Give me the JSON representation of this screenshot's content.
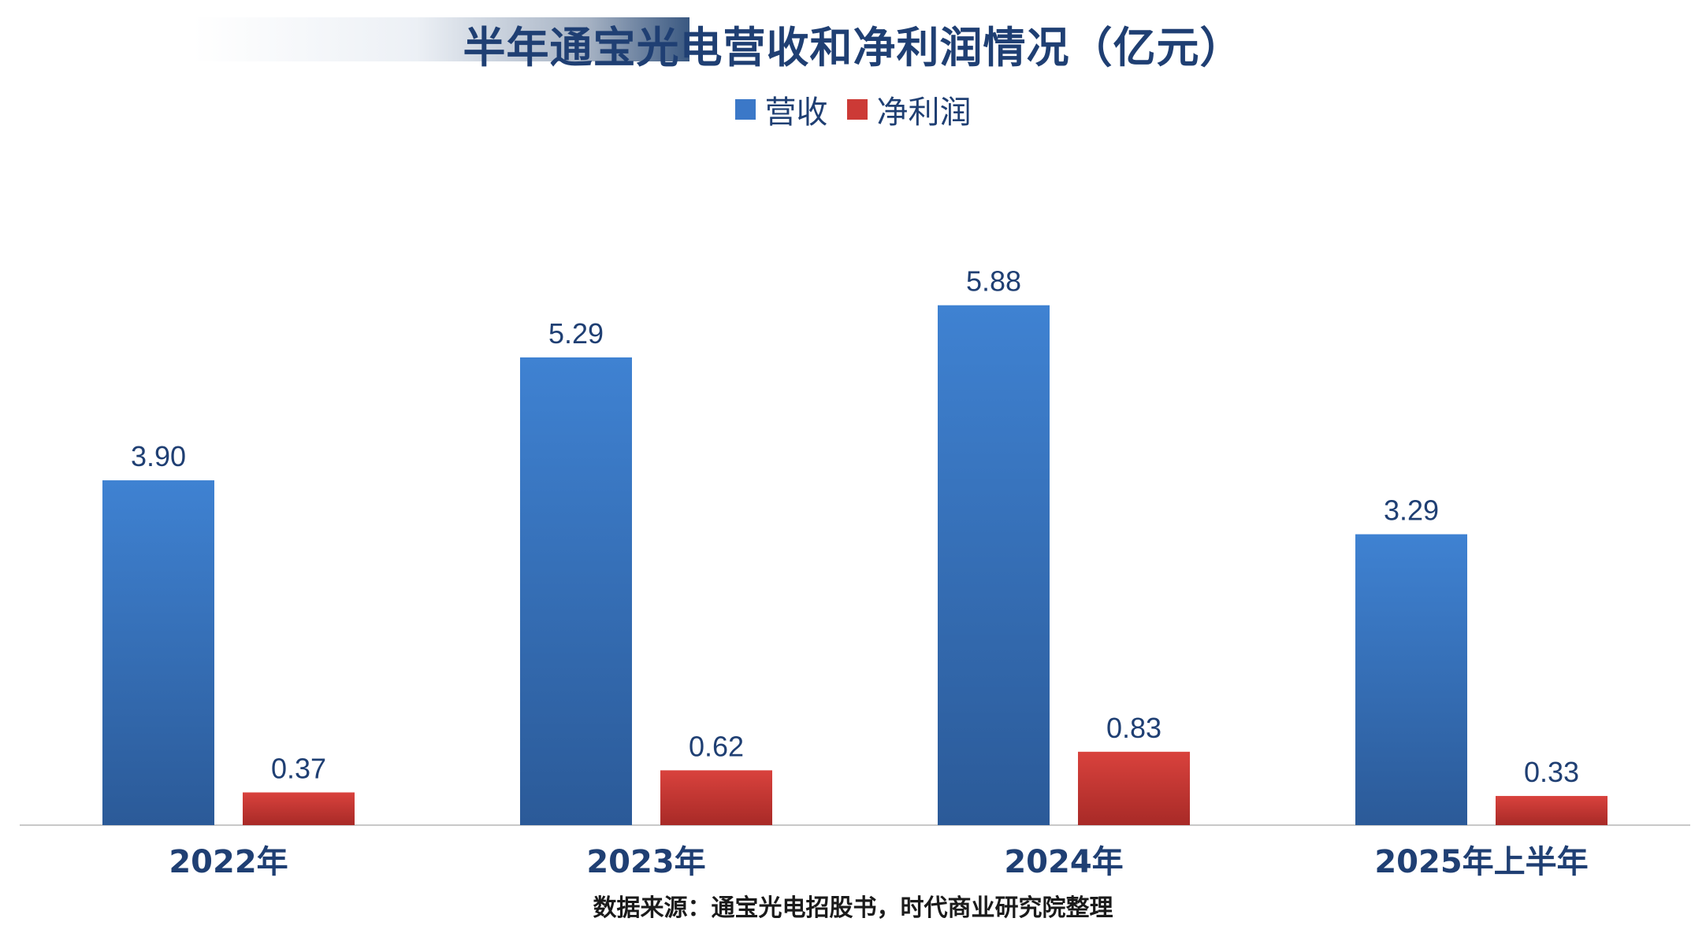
{
  "chart_data": {
    "type": "bar",
    "title": "半年通宝光电营收和净利润情况（亿元）",
    "categories": [
      "2022年",
      "2023年",
      "2024年",
      "2025年上半年"
    ],
    "series": [
      {
        "name": "营收",
        "values": [
          3.9,
          5.29,
          5.88,
          3.29
        ],
        "color": "#3b78c8"
      },
      {
        "name": "净利润",
        "values": [
          0.37,
          0.62,
          0.83,
          0.33
        ],
        "color": "#cc3a36"
      }
    ],
    "ylim": [
      0,
      6.75
    ],
    "grid": false,
    "legend": "top-center",
    "source": "数据来源：通宝光电招股书，时代商业研究院整理"
  },
  "colors": {
    "title": "#1f3f73",
    "label": "#1f3f73",
    "axis": "#c8c8c8"
  }
}
